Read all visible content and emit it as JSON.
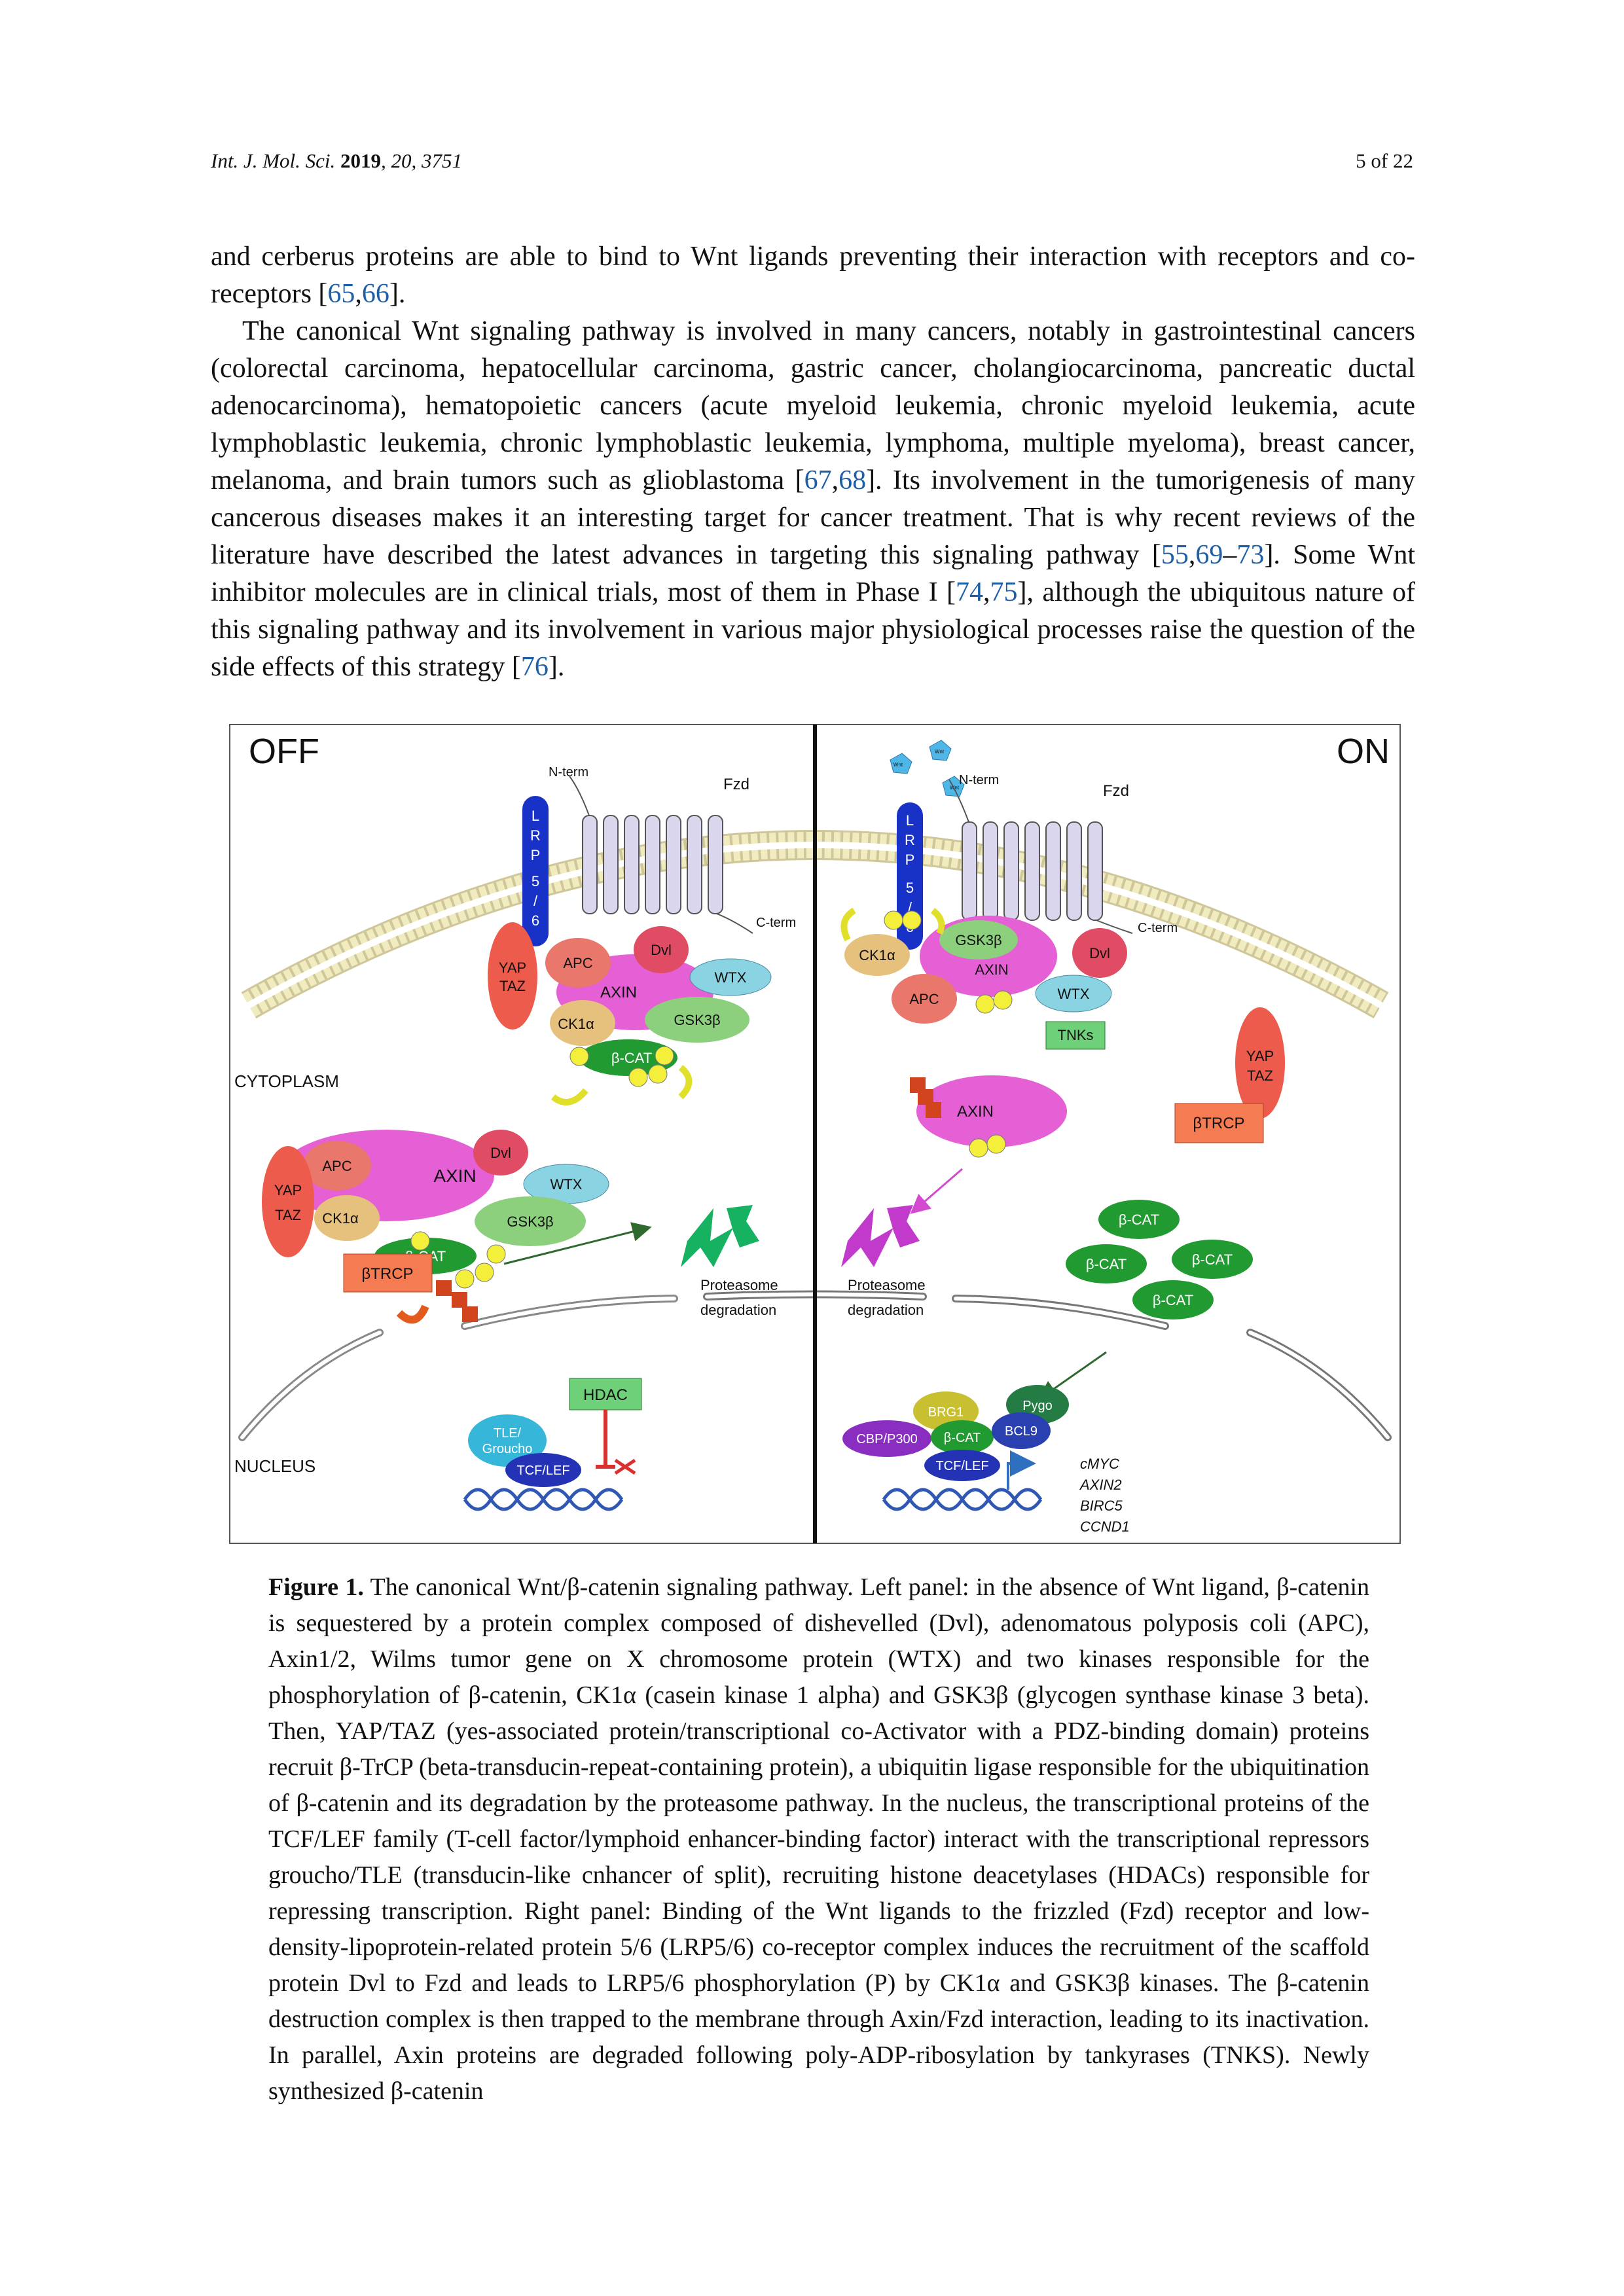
{
  "header": {
    "journal": "Int. J. Mol. Sci.",
    "year": "2019",
    "volume_issue": ", 20, 3751",
    "page": "5 of 22"
  },
  "paragraph1": {
    "text": "and cerberus proteins are able to bind to Wnt ligands preventing their interaction with receptors and co-receptors [",
    "cite_a": "65",
    "sep": ",",
    "cite_b": "66",
    "end": "]."
  },
  "paragraph2": {
    "p1": "The canonical Wnt signaling pathway is involved in many cancers, notably in gastrointestinal cancers (colorectal carcinoma, hepatocellular carcinoma, gastric cancer, cholangiocarcinoma, pancreatic ductal adenocarcinoma), hematopoietic cancers (acute myeloid leukemia, chronic myeloid leukemia, acute lymphoblastic leukemia, chronic lymphoblastic leukemia, lymphoma, multiple myeloma), breast cancer, melanoma, and brain tumors such as glioblastoma [",
    "c1": "67",
    "s1": ",",
    "c2": "68",
    "p2": "]. Its involvement in the tumorigenesis of many cancerous diseases makes it an interesting target for cancer treatment. That is why recent reviews of the literature have described the latest advances in targeting this signaling pathway [",
    "c3": "55",
    "s2": ",",
    "c4": "69",
    "s3": "–",
    "c5": "73",
    "p3": "]. Some Wnt inhibitor molecules are in clinical trials, most of them in Phase I [",
    "c6": "74",
    "s4": ",",
    "c7": "75",
    "p4": "], although the ubiquitous nature of this signaling pathway and its involvement in various major physiological processes raise the question of the side effects of this strategy [",
    "c8": "76",
    "p5": "]."
  },
  "figure": {
    "off": "OFF",
    "on": "ON",
    "nterm": "N-term",
    "cterm": "C-term",
    "fzd": "Fzd",
    "lrp": [
      "L",
      "R",
      "P",
      "5",
      "/",
      "6"
    ],
    "cytoplasm": "CYTOPLASM",
    "nucleus": "NUCLEUS",
    "apc": "APC",
    "dvl": "Dvl",
    "axin": "AXIN",
    "wtx": "WTX",
    "ck1a": "CK1α",
    "gsk3b": "GSK3β",
    "bcat": "β-CAT",
    "yap": "YAP",
    "taz": "TAZ",
    "btrcp": "βTRCP",
    "p": "P",
    "ub": "ub",
    "proteasome": "Proteasome",
    "degradation": "degradation",
    "hdac": "HDAC",
    "tle": "TLE/",
    "groucho": "Groucho",
    "tcflef": "TCF/LEF",
    "tnks": "TNKs",
    "brg1": "BRG1",
    "pygo": "Pygo",
    "bcl9": "BCL9",
    "cbp": "CBP/P300",
    "wnt": "Wnt",
    "genes": [
      "cMYC",
      "AXIN2",
      "BIRC5",
      "CCND1"
    ],
    "colors": {
      "membrane_head": "#f1ecc0",
      "lrp": "#1832c8",
      "fzd": "#d9d6ee",
      "apc": "#e9776c",
      "dvl": "#e04c63",
      "axin": "#e55fd5",
      "wtx": "#8ad3e3",
      "ck1a": "#e5c17d",
      "gsk3b": "#8cd07e",
      "bcat": "#229a32",
      "yap": "#ec5b4b",
      "btrcp": "#f47b52",
      "p": "#f3ef3a",
      "ub": "#d2441e",
      "hdac": "#6fd07a",
      "tle": "#36b7da",
      "tcflef": "#2433b5",
      "dna": "#2f57b4",
      "brg1": "#c8c030",
      "pygo": "#247c44",
      "bcl9": "#2a3fb0",
      "cbp": "#8a2ec2",
      "proteasome_green": "#17b162",
      "proteasome_purple": "#c13acb"
    }
  },
  "caption": {
    "label": "Figure 1.",
    "text": " The canonical Wnt/β-catenin signaling pathway. Left panel: in the absence of Wnt ligand, β-catenin is sequestered by a protein complex composed of dishevelled (Dvl), adenomatous polyposis coli (APC), Axin1/2, Wilms tumor gene on X chromosome protein (WTX) and two kinases responsible for the phosphorylation of β-catenin, CK1α (casein kinase 1 alpha) and GSK3β (glycogen synthase kinase 3 beta). Then, YAP/TAZ (yes-associated protein/transcriptional co-Activator with a PDZ-binding domain) proteins recruit β-TrCP (beta-transducin-repeat-containing protein), a ubiquitin ligase responsible for the ubiquitination of β-catenin and its degradation by the proteasome pathway. In the nucleus, the transcriptional proteins of the TCF/LEF family (T-cell factor/lymphoid enhancer-binding factor) interact with the transcriptional repressors groucho/TLE (transducin-like cnhancer of split), recruiting histone deacetylases (HDACs) responsible for repressing transcription. Right panel: Binding of the Wnt ligands to the frizzled (Fzd) receptor and low-density-lipoprotein-related protein 5/6 (LRP5/6) co-receptor complex induces the recruitment of the scaffold protein Dvl to Fzd and leads to LRP5/6 phosphorylation (P) by CK1α and GSK3β kinases. The β-catenin destruction complex is then trapped to the membrane through Axin/Fzd interaction, leading to its inactivation. In parallel, Axin proteins are degraded following poly-ADP-ribosylation by tankyrases (TNKS). Newly synthesized β-catenin"
  }
}
